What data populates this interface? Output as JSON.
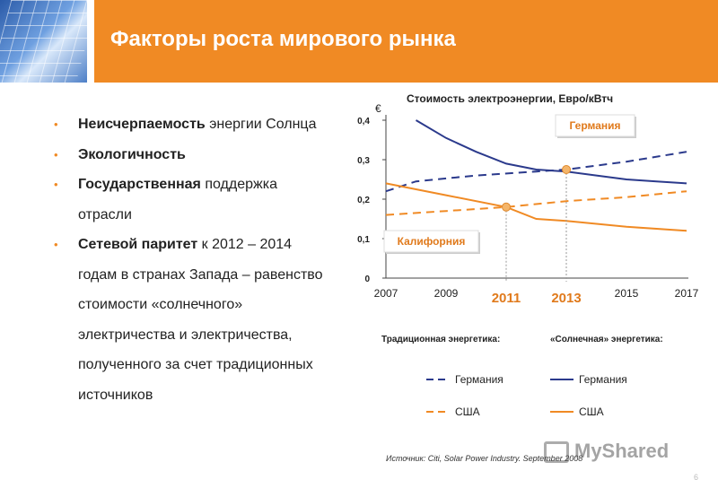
{
  "slide": {
    "title": "Факторы роста мирового рынка",
    "page_number": "6",
    "source": "Источник: Citi, Solar Power Industry. September 2008",
    "watermark": "MyShared"
  },
  "bullets": [
    {
      "bold": "Неисчерпаемость",
      "text": " энергии Солнца"
    },
    {
      "bold": "Экологичность",
      "text": ""
    },
    {
      "bold": "Государственная",
      "text": " поддержка отрасли"
    },
    {
      "bold": "Сетевой паритет",
      "text": " к 2012 – 2014 годам в странах Запада – равенство стоимости «солнечного» электричества и электричества, полученного за счет традиционных источников"
    }
  ],
  "colors": {
    "accent": "#f08a24",
    "germany": "#2b3a8c",
    "usa": "#f08a24",
    "callout_text": "#e07a1c"
  },
  "chart_data": {
    "type": "line",
    "title": "Стоимость электроэнергии, Евро/кВтч",
    "ylabel": "€",
    "ylim": [
      0,
      0.4
    ],
    "xlim": [
      2007,
      2017
    ],
    "y_ticks": [
      "0",
      "0,1",
      "0,2",
      "0,3",
      "0,4"
    ],
    "x_ticks": [
      "2007",
      "2009",
      "2011",
      "2013",
      "2015",
      "2017"
    ],
    "highlight_years": [
      2011,
      2013
    ],
    "grid": false,
    "series": [
      {
        "group": "Традиционная энергетика:",
        "name": "Германия",
        "style": "dashed",
        "color": "#2b3a8c",
        "points": [
          [
            2007,
            0.22
          ],
          [
            2008,
            0.245
          ],
          [
            2010,
            0.26
          ],
          [
            2012,
            0.27
          ],
          [
            2013,
            0.275
          ],
          [
            2015,
            0.295
          ],
          [
            2017,
            0.32
          ]
        ]
      },
      {
        "group": "Традиционная энергетика:",
        "name": "США",
        "style": "dashed",
        "color": "#f08a24",
        "points": [
          [
            2007,
            0.16
          ],
          [
            2009,
            0.17
          ],
          [
            2011,
            0.18
          ],
          [
            2013,
            0.195
          ],
          [
            2015,
            0.205
          ],
          [
            2017,
            0.22
          ]
        ]
      },
      {
        "group": "«Солнечная» энергетика:",
        "name": "Германия",
        "style": "solid",
        "color": "#2b3a8c",
        "points": [
          [
            2008,
            0.4
          ],
          [
            2009,
            0.355
          ],
          [
            2010,
            0.32
          ],
          [
            2011,
            0.29
          ],
          [
            2012,
            0.275
          ],
          [
            2013,
            0.27
          ],
          [
            2014,
            0.26
          ],
          [
            2015,
            0.25
          ],
          [
            2016,
            0.245
          ],
          [
            2017,
            0.24
          ]
        ]
      },
      {
        "group": "«Солнечная» энергетика:",
        "name": "США",
        "style": "solid",
        "color": "#f08a24",
        "points": [
          [
            2007,
            0.24
          ],
          [
            2009,
            0.21
          ],
          [
            2011,
            0.18
          ],
          [
            2012,
            0.15
          ],
          [
            2013,
            0.145
          ],
          [
            2015,
            0.13
          ],
          [
            2017,
            0.12
          ]
        ]
      }
    ],
    "annotations": [
      {
        "label": "Германия",
        "year": 2013,
        "value": 0.275
      },
      {
        "label": "Калифорния",
        "year": 2011,
        "value": 0.18
      }
    ],
    "legend": {
      "group_traditional": "Традиционная энергетика:",
      "group_solar": "«Солнечная» энергетика:",
      "items": [
        {
          "style": "dashed",
          "color": "#2b3a8c",
          "label": "Германия"
        },
        {
          "style": "solid",
          "color": "#2b3a8c",
          "label": "Германия"
        },
        {
          "style": "dashed",
          "color": "#f08a24",
          "label": "США"
        },
        {
          "style": "solid",
          "color": "#f08a24",
          "label": "США"
        }
      ]
    }
  }
}
